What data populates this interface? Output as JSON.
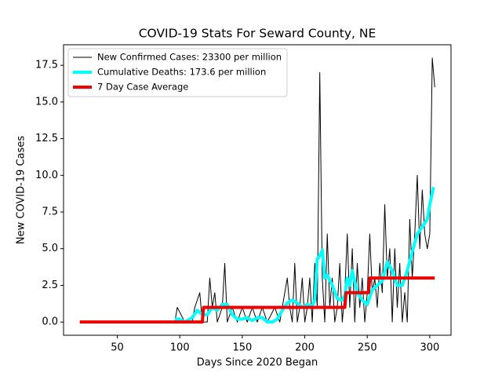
{
  "chart_data": {
    "type": "line",
    "title": "COVID-19 Stats For Seward County, NE",
    "x_label": "Days Since 2020 Began",
    "y_label": "New COVID-19 Cases",
    "xlim": [
      7,
      317
    ],
    "ylim": [
      -0.9,
      18.9
    ],
    "xticks": [
      50,
      100,
      150,
      200,
      250,
      300
    ],
    "yticks": [
      {
        "value": 0,
        "label": "0.0"
      },
      2.5,
      {
        "value": 5,
        "label": "5.0"
      },
      7.5,
      {
        "value": 10,
        "label": "10.0"
      },
      12.5,
      {
        "value": 15,
        "label": "15.0"
      },
      17.5
    ],
    "legend": "upper left",
    "series": [
      {
        "name": "New Confirmed Cases: 23300 per million",
        "color": "#000000",
        "width": 1,
        "x": [
          96,
          98,
          104,
          110,
          112,
          116,
          118,
          122,
          124,
          126,
          128,
          130,
          134,
          136,
          138,
          142,
          146,
          150,
          154,
          158,
          162,
          166,
          170,
          176,
          180,
          184,
          186,
          188,
          190,
          192,
          194,
          196,
          198,
          200,
          202,
          204,
          206,
          208,
          210,
          212,
          214,
          216,
          218,
          220,
          222,
          224,
          226,
          228,
          230,
          232,
          234,
          236,
          238,
          240,
          242,
          244,
          246,
          248,
          250,
          252,
          254,
          256,
          258,
          260,
          262,
          264,
          266,
          268,
          270,
          272,
          274,
          276,
          278,
          280,
          282,
          284,
          286,
          288,
          290,
          292,
          294,
          296,
          298,
          300,
          302,
          304
        ],
        "values": [
          0,
          1,
          0,
          0,
          1,
          2,
          0,
          0,
          3,
          1,
          2,
          0,
          1,
          4,
          0,
          1,
          0,
          1,
          0,
          1,
          0,
          1,
          0,
          1,
          0,
          2,
          3,
          1,
          0,
          4,
          0,
          1,
          3,
          0,
          1,
          3,
          0,
          4,
          1,
          17,
          3,
          0,
          6,
          1,
          3,
          0,
          1,
          4,
          0,
          2,
          6,
          1,
          5,
          0,
          4,
          1,
          3,
          0,
          2,
          6,
          2,
          3,
          1,
          4,
          2,
          8,
          3,
          5,
          0,
          5,
          1,
          4,
          0,
          2,
          0,
          7,
          3,
          6,
          10,
          5,
          9,
          6,
          5,
          6,
          18,
          16
        ]
      },
      {
        "name": "Cumulative Deaths: 173.6 per million",
        "color": "#00ffff",
        "width": 4,
        "x": [
          96,
          100,
          104,
          110,
          114,
          118,
          122,
          126,
          130,
          134,
          138,
          142,
          146,
          150,
          154,
          158,
          162,
          166,
          170,
          174,
          178,
          182,
          186,
          190,
          194,
          198,
          202,
          206,
          208,
          210,
          212,
          214,
          216,
          218,
          222,
          226,
          230,
          232,
          234,
          236,
          238,
          242,
          246,
          250,
          254,
          258,
          262,
          266,
          270,
          274,
          278,
          282,
          286,
          290,
          294,
          298,
          300,
          303
        ],
        "values": [
          0.2,
          0.2,
          0,
          0.3,
          0.8,
          0.5,
          0.5,
          1.0,
          0.8,
          1.2,
          1.2,
          0.5,
          0.2,
          0.2,
          0.3,
          0.1,
          0.3,
          0.3,
          0,
          0,
          0.2,
          0.8,
          1.3,
          1.5,
          1.3,
          1.0,
          1.2,
          1.1,
          1.5,
          4.3,
          4.5,
          4.9,
          3.0,
          3.2,
          2.5,
          1.6,
          1.5,
          1.8,
          3.0,
          2.5,
          3.5,
          2.0,
          1.5,
          1.2,
          2.2,
          2.5,
          2.8,
          4.1,
          3.5,
          2.5,
          2.5,
          3.5,
          4.8,
          6.0,
          6.5,
          7.0,
          8.0,
          9.2
        ]
      },
      {
        "name": "7 Day Case Average",
        "color": "#ee0000",
        "width": 4,
        "x": [
          20,
          118,
          119,
          232,
          233,
          251,
          252,
          304
        ],
        "values": [
          0,
          0,
          1,
          1,
          2,
          2,
          3,
          3
        ]
      }
    ]
  }
}
